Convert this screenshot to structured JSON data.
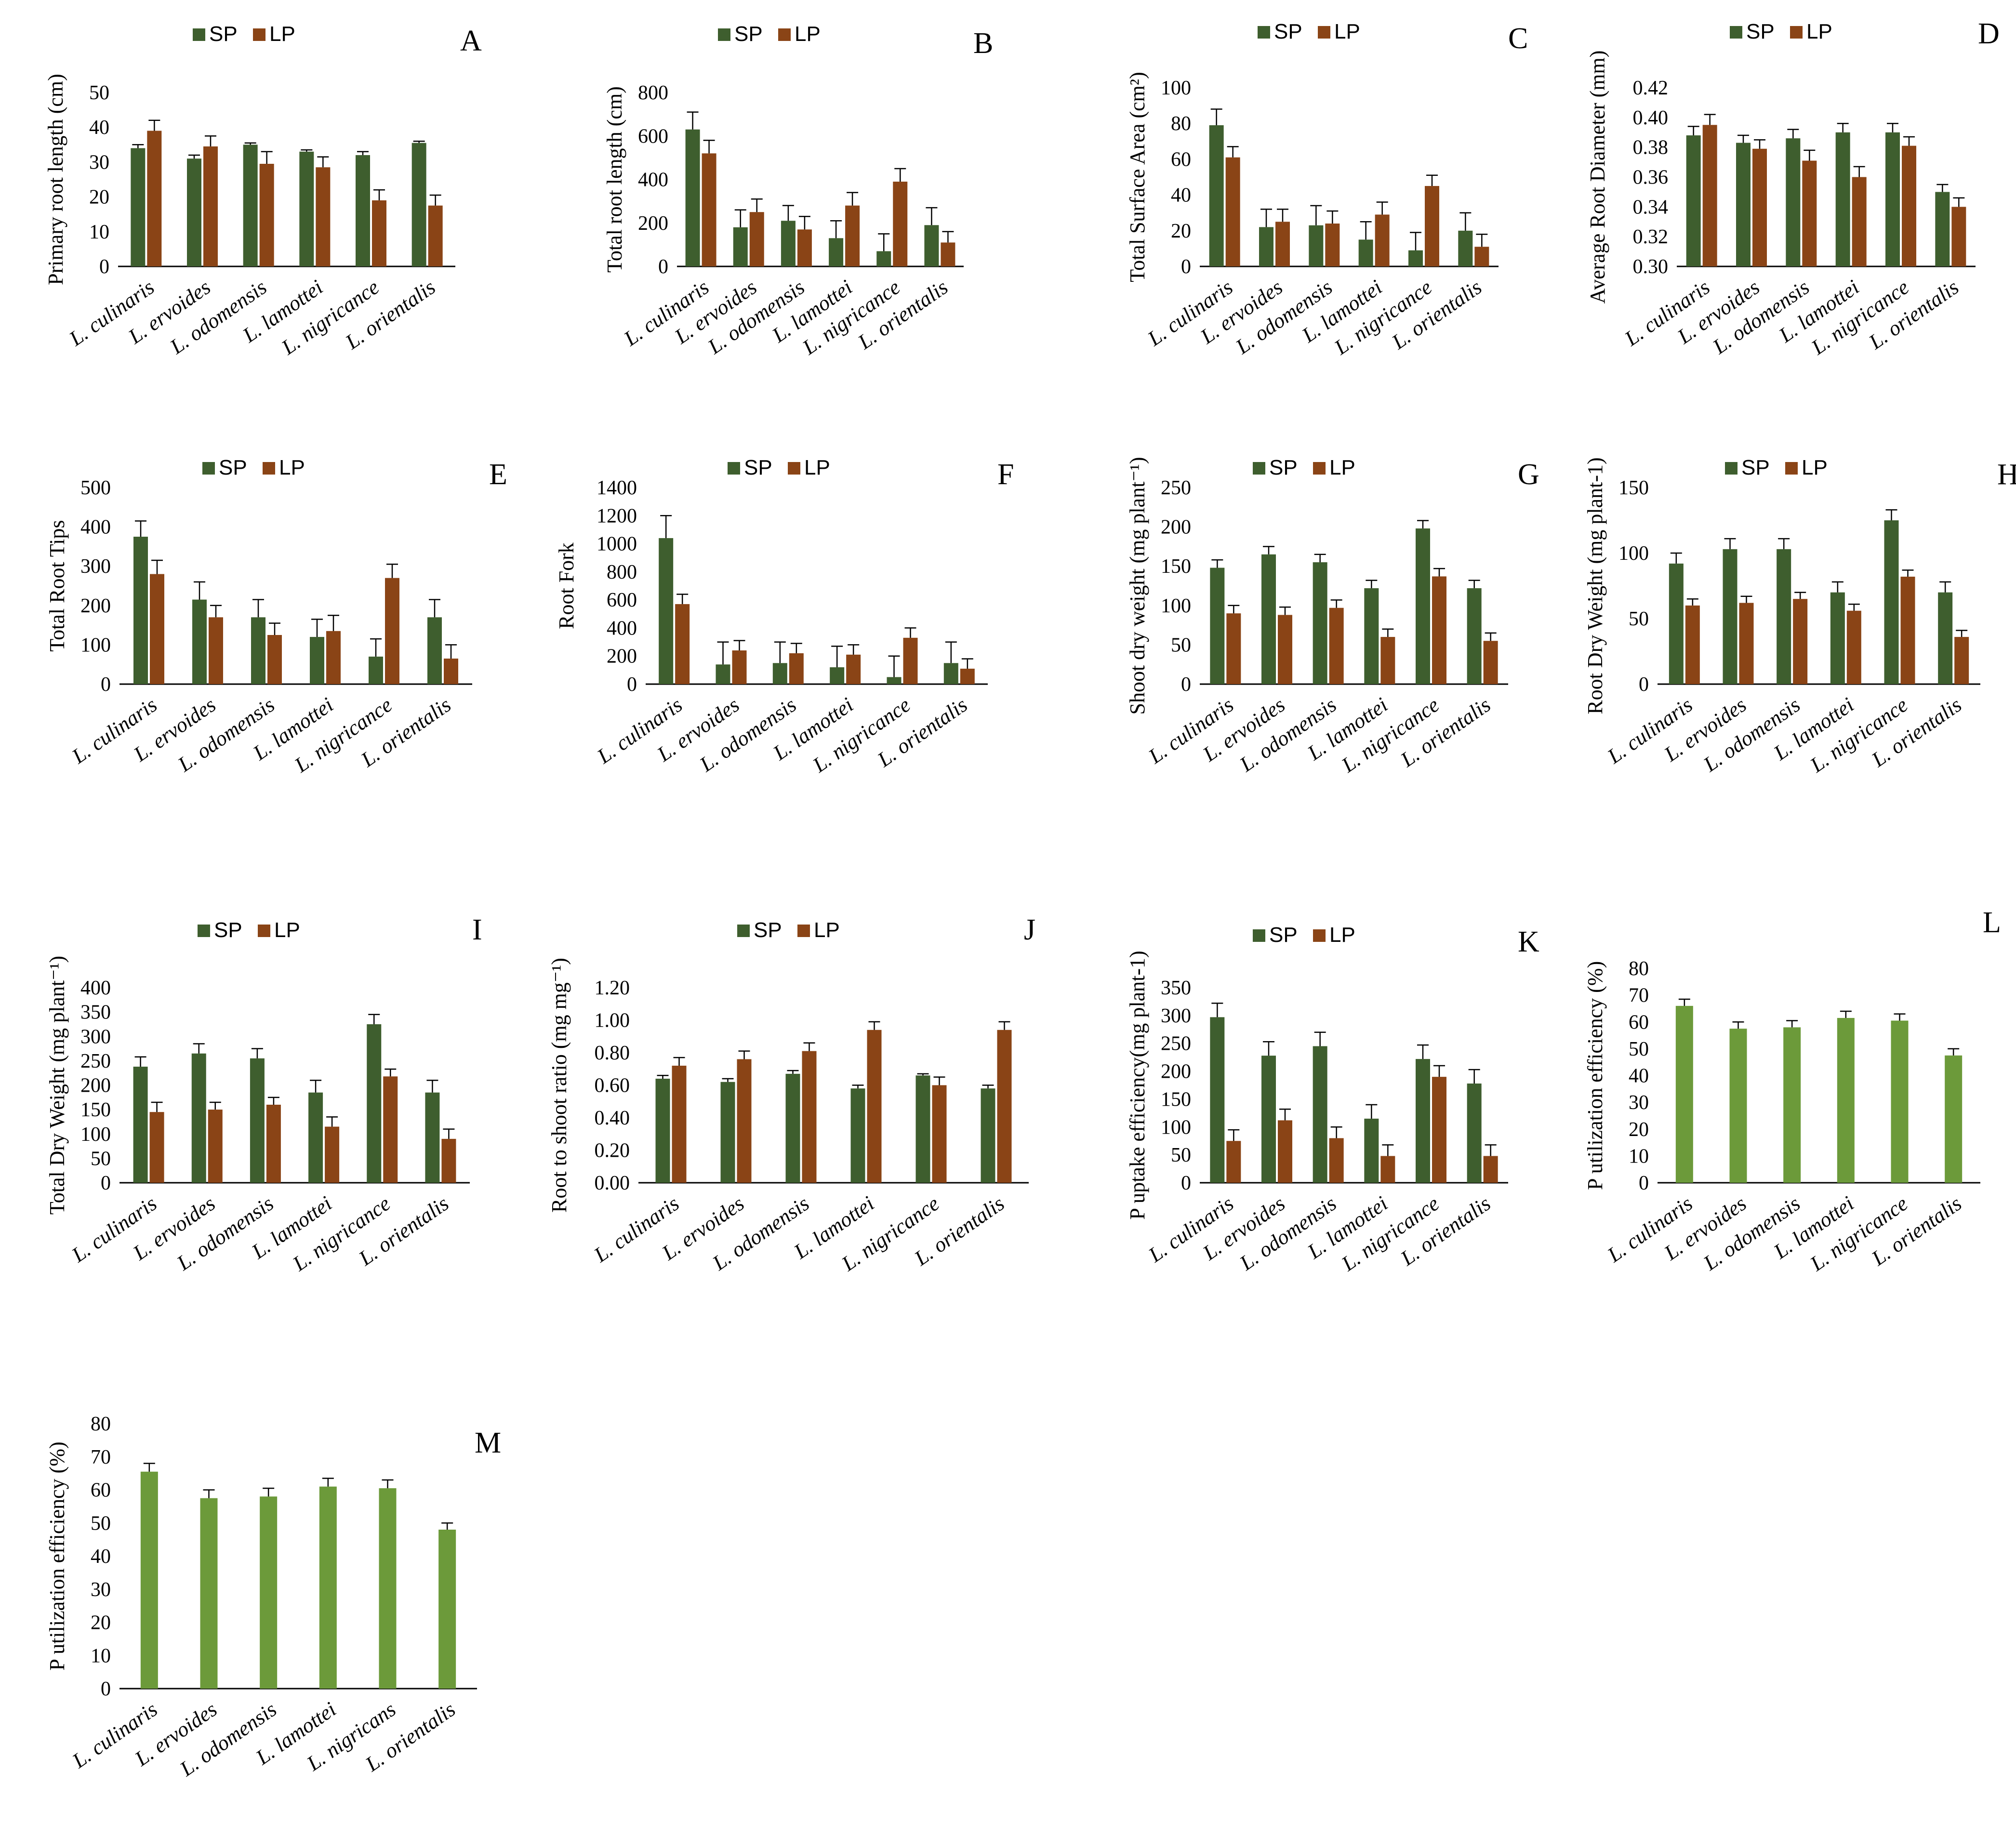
{
  "colors": {
    "SP": "#3e5e2e",
    "LP": "#8a4416",
    "single": "#6c9a3a",
    "axis": "#000000",
    "error": "#000000"
  },
  "legend": {
    "sp": "SP",
    "lp": "LP"
  },
  "chart_data": [
    {
      "panel": "A",
      "type": "bar",
      "ylabel": "Primary root length (cm)",
      "ylim": [
        0,
        50
      ],
      "ytick_step": 10,
      "tick_decimals": 0,
      "categories": [
        "L. culinaris",
        "L. ervoides",
        "L. odomensis",
        "L. lamottei",
        "L. nigricance",
        "L. orientalis"
      ],
      "series": [
        {
          "name": "SP",
          "values": [
            34,
            31,
            35,
            33,
            32,
            35.5
          ],
          "errors": [
            1,
            1,
            0.5,
            0.5,
            1,
            0.5
          ]
        },
        {
          "name": "LP",
          "values": [
            39,
            34.5,
            29.5,
            28.5,
            19,
            17.5
          ],
          "errors": [
            3,
            3,
            3.5,
            3,
            3,
            3
          ]
        }
      ]
    },
    {
      "panel": "B",
      "type": "bar",
      "ylabel": "Total root length (cm)",
      "ylim": [
        0,
        800
      ],
      "ytick_step": 200,
      "tick_decimals": 0,
      "categories": [
        "L. culinaris",
        "L. ervoides",
        "L. odomensis",
        "L. lamottei",
        "L. nigricance",
        "L. orientalis"
      ],
      "series": [
        {
          "name": "SP",
          "values": [
            630,
            180,
            210,
            130,
            70,
            190
          ],
          "errors": [
            80,
            80,
            70,
            80,
            80,
            80
          ]
        },
        {
          "name": "LP",
          "values": [
            520,
            250,
            170,
            280,
            390,
            110
          ],
          "errors": [
            60,
            60,
            60,
            60,
            60,
            50
          ]
        }
      ]
    },
    {
      "panel": "C",
      "type": "bar",
      "ylabel": "Total Surface Area (cm²)",
      "ylim": [
        0,
        100
      ],
      "ytick_step": 20,
      "tick_decimals": 0,
      "categories": [
        "L. culinaris",
        "L. ervoides",
        "L. odomensis",
        "L. lamottei",
        "L. nigricance",
        "L. orientalis"
      ],
      "series": [
        {
          "name": "SP",
          "values": [
            79,
            22,
            23,
            15,
            9,
            20
          ],
          "errors": [
            9,
            10,
            11,
            10,
            10,
            10
          ]
        },
        {
          "name": "LP",
          "values": [
            61,
            25,
            24,
            29,
            45,
            11
          ],
          "errors": [
            6,
            7,
            7,
            7,
            6,
            7
          ]
        }
      ]
    },
    {
      "panel": "D",
      "type": "bar",
      "ylabel": "Average Root Diameter (mm)",
      "ylim": [
        0.3,
        0.42
      ],
      "ytick_step": 0.02,
      "tick_decimals": 2,
      "categories": [
        "L. culinaris",
        "L. ervoides",
        "L. odomensis",
        "L. lamottei",
        "L. nigricance",
        "L. orientalis"
      ],
      "series": [
        {
          "name": "SP",
          "values": [
            0.388,
            0.383,
            0.386,
            0.39,
            0.39,
            0.35
          ],
          "errors": [
            0.006,
            0.005,
            0.006,
            0.006,
            0.006,
            0.005
          ]
        },
        {
          "name": "LP",
          "values": [
            0.395,
            0.379,
            0.371,
            0.36,
            0.381,
            0.34
          ],
          "errors": [
            0.007,
            0.006,
            0.007,
            0.007,
            0.006,
            0.006
          ]
        }
      ]
    },
    {
      "panel": "E",
      "type": "bar",
      "ylabel": "Total Root Tips",
      "ylim": [
        0,
        500
      ],
      "ytick_step": 100,
      "tick_decimals": 0,
      "categories": [
        "L. culinaris",
        "L. ervoides",
        "L. odomensis",
        "L. lamottei",
        "L. nigricance",
        "L. orientalis"
      ],
      "series": [
        {
          "name": "SP",
          "values": [
            375,
            215,
            170,
            120,
            70,
            170
          ],
          "errors": [
            40,
            45,
            45,
            45,
            45,
            45
          ]
        },
        {
          "name": "LP",
          "values": [
            280,
            170,
            125,
            135,
            270,
            65
          ],
          "errors": [
            35,
            30,
            30,
            40,
            35,
            35
          ]
        }
      ]
    },
    {
      "panel": "F",
      "type": "bar",
      "ylabel": "Root Fork",
      "ylim": [
        0,
        1400
      ],
      "ytick_step": 200,
      "tick_decimals": 0,
      "categories": [
        "L. culinaris",
        "L. ervoides",
        "L. odomensis",
        "L. lamottei",
        "L. nigricance",
        "L. orientalis"
      ],
      "series": [
        {
          "name": "SP",
          "values": [
            1040,
            140,
            150,
            120,
            50,
            150
          ],
          "errors": [
            160,
            160,
            150,
            150,
            150,
            150
          ]
        },
        {
          "name": "LP",
          "values": [
            570,
            240,
            220,
            210,
            330,
            110
          ],
          "errors": [
            70,
            70,
            70,
            70,
            70,
            70
          ]
        }
      ]
    },
    {
      "panel": "G",
      "type": "bar",
      "ylabel": "Shoot dry weight (mg plant⁻¹)",
      "ylim": [
        0,
        250
      ],
      "ytick_step": 50,
      "tick_decimals": 0,
      "categories": [
        "L. culinaris",
        "L. ervoides",
        "L. odomensis",
        "L. lamottei",
        "L. nigricance",
        "L. orientalis"
      ],
      "series": [
        {
          "name": "SP",
          "values": [
            148,
            165,
            155,
            122,
            198,
            122
          ],
          "errors": [
            10,
            10,
            10,
            10,
            10,
            10
          ]
        },
        {
          "name": "LP",
          "values": [
            90,
            88,
            97,
            60,
            137,
            55
          ],
          "errors": [
            10,
            10,
            10,
            10,
            10,
            10
          ]
        }
      ]
    },
    {
      "panel": "H",
      "type": "bar",
      "ylabel": "Root Dry Weight (mg plant-1)",
      "ylim": [
        0,
        150
      ],
      "ytick_step": 50,
      "tick_decimals": 0,
      "categories": [
        "L. culinaris",
        "L. ervoides",
        "L. odomensis",
        "L. lamottei",
        "L. nigricance",
        "L. orientalis"
      ],
      "series": [
        {
          "name": "SP",
          "values": [
            92,
            103,
            103,
            70,
            125,
            70
          ],
          "errors": [
            8,
            8,
            8,
            8,
            8,
            8
          ]
        },
        {
          "name": "LP",
          "values": [
            60,
            62,
            65,
            56,
            82,
            36
          ],
          "errors": [
            5,
            5,
            5,
            5,
            5,
            5
          ]
        }
      ]
    },
    {
      "panel": "I",
      "type": "bar",
      "ylabel": "Total Dry Weight (mg plant⁻¹)",
      "ylim": [
        0,
        400
      ],
      "ytick_step": 50,
      "tick_decimals": 0,
      "categories": [
        "L. culinaris",
        "L. ervoides",
        "L. odomensis",
        "L. lamottei",
        "L. nigricance",
        "L. orientalis"
      ],
      "series": [
        {
          "name": "SP",
          "values": [
            238,
            265,
            255,
            185,
            325,
            185
          ],
          "errors": [
            20,
            20,
            20,
            25,
            20,
            25
          ]
        },
        {
          "name": "LP",
          "values": [
            145,
            150,
            160,
            115,
            218,
            90
          ],
          "errors": [
            20,
            15,
            15,
            20,
            15,
            20
          ]
        }
      ]
    },
    {
      "panel": "J",
      "type": "bar",
      "ylabel": "Root to shoot ratio (mg mg⁻¹)",
      "ylim": [
        0,
        1.2
      ],
      "ytick_step": 0.2,
      "tick_decimals": 2,
      "categories": [
        "L. culinaris",
        "L. ervoides",
        "L. odomensis",
        "L. lamottei",
        "L. nigricance",
        "L. orientalis"
      ],
      "series": [
        {
          "name": "SP",
          "values": [
            0.64,
            0.62,
            0.67,
            0.58,
            0.66,
            0.58
          ],
          "errors": [
            0.02,
            0.02,
            0.02,
            0.02,
            0.01,
            0.02
          ]
        },
        {
          "name": "LP",
          "values": [
            0.72,
            0.76,
            0.81,
            0.94,
            0.6,
            0.94
          ],
          "errors": [
            0.05,
            0.05,
            0.05,
            0.05,
            0.05,
            0.05
          ]
        }
      ]
    },
    {
      "panel": "K",
      "type": "bar",
      "ylabel": "P uptake efficiency(mg plant-1)",
      "ylim": [
        0,
        350
      ],
      "ytick_step": 50,
      "tick_decimals": 0,
      "categories": [
        "L. culinaris",
        "L. ervoides",
        "L. odomensis",
        "L. lamottei",
        "L. nigricance",
        "L. orientalis"
      ],
      "series": [
        {
          "name": "SP",
          "values": [
            297,
            228,
            245,
            115,
            222,
            178
          ],
          "errors": [
            25,
            25,
            25,
            25,
            25,
            25
          ]
        },
        {
          "name": "LP",
          "values": [
            75,
            112,
            80,
            48,
            190,
            48
          ],
          "errors": [
            20,
            20,
            20,
            20,
            20,
            20
          ]
        }
      ]
    },
    {
      "panel": "L",
      "type": "bar",
      "ylabel": "P utilization efficiency (%)",
      "ylim": [
        0,
        80
      ],
      "ytick_step": 10,
      "tick_decimals": 0,
      "categories": [
        "L. culinaris",
        "L. ervoides",
        "L. odomensis",
        "L. lamottei",
        "L. nigricance",
        "L. orientalis"
      ],
      "series": [
        {
          "name": "",
          "values": [
            66,
            57.5,
            58,
            61.5,
            60.5,
            47.5
          ],
          "errors": [
            2.5,
            2.5,
            2.5,
            2.5,
            2.5,
            2.5
          ]
        }
      ]
    },
    {
      "panel": "M",
      "type": "bar",
      "ylabel": "P utilization efficiency (%)",
      "ylim": [
        0,
        80
      ],
      "ytick_step": 10,
      "tick_decimals": 0,
      "categories": [
        "L. culinaris",
        "L. ervoides",
        "L. odomensis",
        "L. lamottei",
        "L. nigricans",
        "L. orientalis"
      ],
      "series": [
        {
          "name": "",
          "values": [
            65.5,
            57.5,
            58,
            61,
            60.5,
            48
          ],
          "errors": [
            2.5,
            2.5,
            2.5,
            2.5,
            2.5,
            2
          ]
        }
      ]
    }
  ]
}
